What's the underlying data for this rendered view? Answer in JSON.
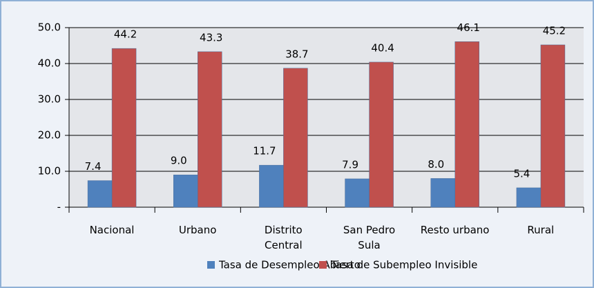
{
  "chart_data": {
    "type": "bar",
    "categories": [
      "Nacional",
      "Urbano",
      "Distrito\nCentral",
      "San Pedro\nSula",
      "Resto urbano",
      "Rural"
    ],
    "series": [
      {
        "name": "Tasa de Desempleo Abierto",
        "color": "#4f81bd",
        "values": [
          7.4,
          9.0,
          11.7,
          7.9,
          8.0,
          5.4
        ],
        "value_labels": [
          "7.4",
          "9.0",
          "11.7",
          "7.9",
          "8.0",
          "5.4"
        ]
      },
      {
        "name": "Tasa de Subempleo Invisible",
        "color": "#c0504d",
        "values": [
          44.2,
          43.3,
          38.7,
          40.4,
          46.1,
          45.2
        ],
        "value_labels": [
          "44.2",
          "43.3",
          "38.7",
          "40.4",
          "46.1",
          "45.2"
        ]
      }
    ],
    "ylim": [
      0,
      50
    ],
    "yticks": [
      {
        "value": 0,
        "label": "-"
      },
      {
        "value": 10,
        "label": "10.0"
      },
      {
        "value": 20,
        "label": "20.0"
      },
      {
        "value": 30,
        "label": "30.0"
      },
      {
        "value": 40,
        "label": "40.0"
      },
      {
        "value": 50,
        "label": "50.0"
      }
    ],
    "grid": true
  }
}
